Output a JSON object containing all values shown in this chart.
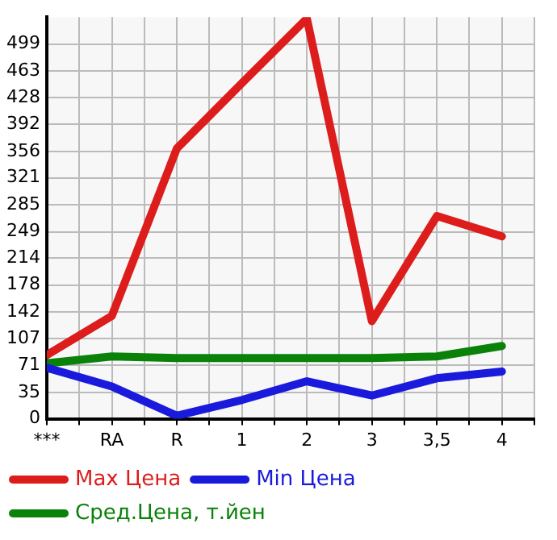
{
  "chart_data": {
    "type": "line",
    "categories": [
      "***",
      "RA",
      "R",
      "1",
      "2",
      "3",
      "3,5",
      "4"
    ],
    "series": [
      {
        "name": "Max Цена",
        "color": "#dd1c1c",
        "values": [
          85,
          137,
          360,
          447,
          533,
          130,
          270,
          243
        ]
      },
      {
        "name": "Min Цена",
        "color": "#1a1adc",
        "values": [
          68,
          43,
          4,
          25,
          50,
          31,
          54,
          63
        ]
      },
      {
        "name": "Сред.Цена, т.йен",
        "color": "#0a820a",
        "values": [
          74,
          83,
          81,
          81,
          81,
          81,
          83,
          97
        ]
      }
    ],
    "ylim": [
      0,
      535
    ],
    "yticks": [
      0,
      35,
      71,
      107,
      142,
      178,
      214,
      249,
      285,
      321,
      356,
      392,
      428,
      463,
      499
    ],
    "grid": true,
    "legend": "bottom",
    "marker": "none",
    "line_style": "solid"
  }
}
